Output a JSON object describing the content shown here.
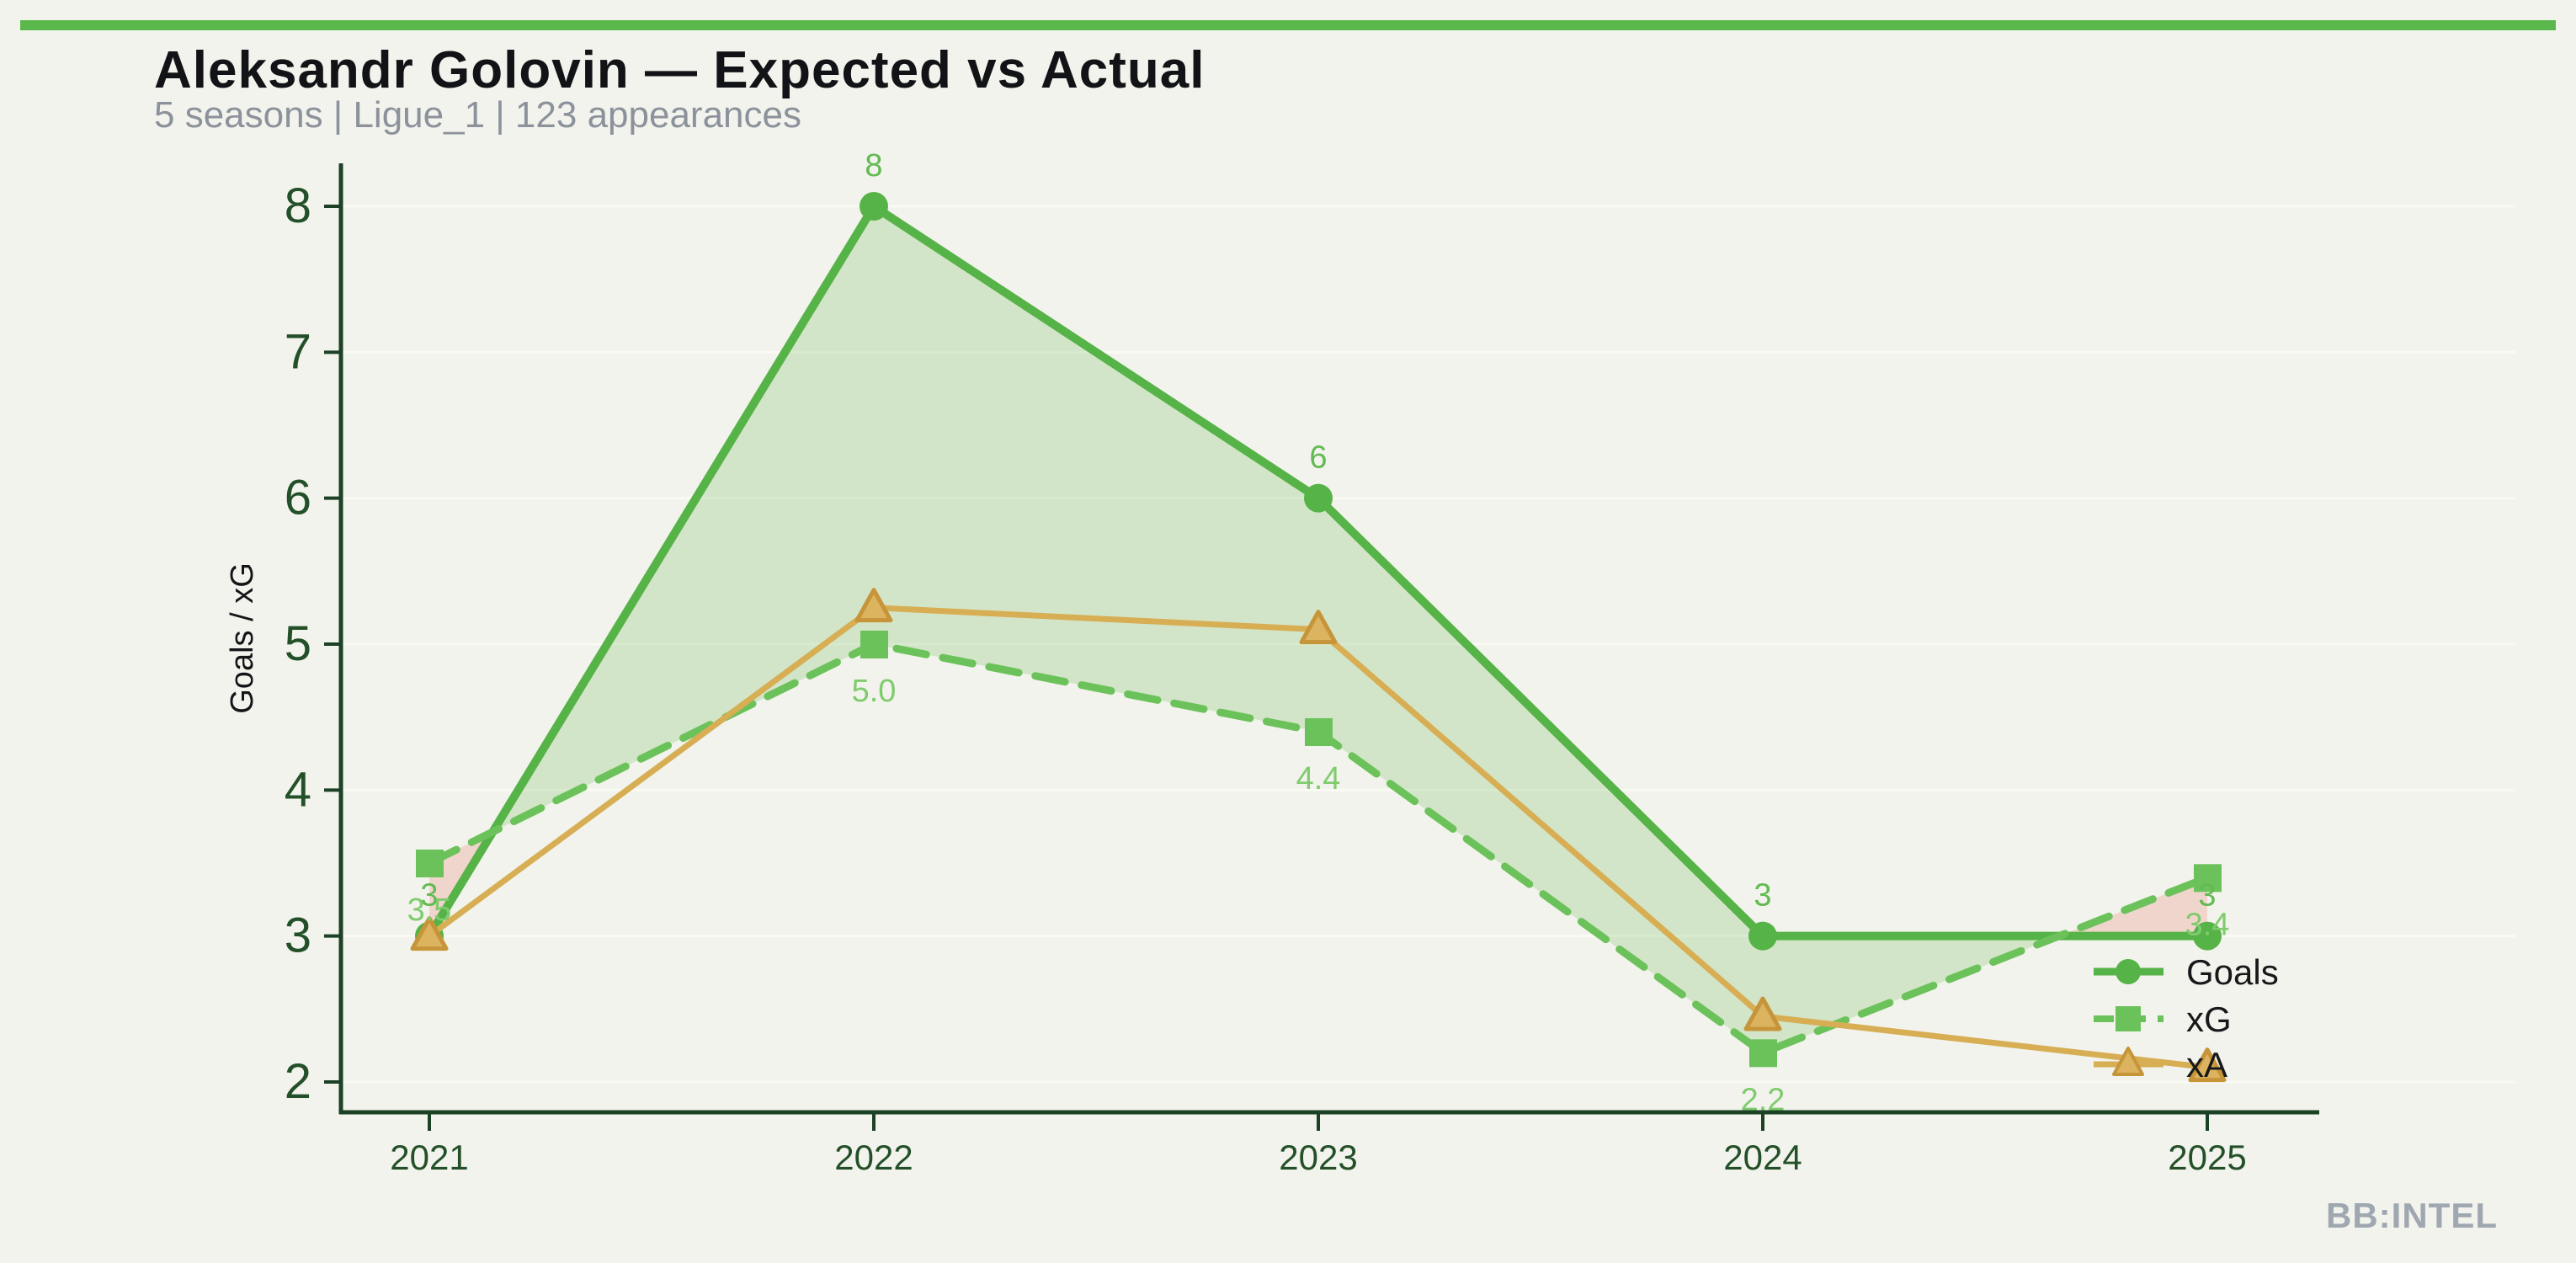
{
  "header": {
    "title": "Aleksandr Golovin — Expected vs Actual",
    "subtitle": "5 seasons | Ligue_1 | 123 appearances"
  },
  "footer": {
    "brand": "BB:INTEL"
  },
  "theme": {
    "background": "#f2f3ec",
    "accent_bar": "#5bb84d",
    "spine_color": "#1d4125",
    "tick_label_color": "#245029",
    "grid_color": "#fbfbf6",
    "axis_title_color": "#141518",
    "title_color": "#121316",
    "subtitle_color": "#8c929c",
    "legend_text_color": "#17181a",
    "brand_color": "#9fa7b1"
  },
  "chart_data": {
    "type": "line",
    "title": "Aleksandr Golovin — Expected vs Actual",
    "xlabel": "",
    "ylabel": "Goals / xG",
    "x": [
      2021,
      2022,
      2023,
      2024,
      2025
    ],
    "x_tick_labels": [
      "2021",
      "2022",
      "2023",
      "2024",
      "2025"
    ],
    "y_ticks": [
      2,
      3,
      4,
      5,
      6,
      7,
      8
    ],
    "ylim": [
      1.85,
      8.3
    ],
    "grid": "horizontal-white",
    "legend_position": "lower right",
    "series": [
      {
        "name": "Goals",
        "values": [
          3,
          8,
          6,
          3,
          3
        ],
        "point_labels": [
          "3",
          "8",
          "6",
          "3",
          "3"
        ],
        "marker": "circle",
        "line_style": "solid",
        "color": "#56b347",
        "label_color": "#63ba52"
      },
      {
        "name": "xG",
        "values": [
          3.5,
          5.0,
          4.4,
          2.2,
          3.4
        ],
        "point_labels": [
          "3.5",
          "5.0",
          "4.4",
          "2.2",
          "3.4"
        ],
        "marker": "square",
        "line_style": "dashed",
        "color": "#6cc25a",
        "label_color": "#80cb6e"
      },
      {
        "name": "xA",
        "values": [
          3.0,
          5.25,
          5.1,
          2.45,
          2.1
        ],
        "point_labels": [],
        "marker": "triangle",
        "line_style": "solid",
        "color": "#d7ae54",
        "marker_fill": "#dcb35f",
        "marker_stroke": "#c69539"
      }
    ],
    "fill_between": {
      "series_a": "Goals",
      "series_b": "xG",
      "positive_color": "rgba(140,200,115,0.30)",
      "negative_color": "rgba(236,148,136,0.32)"
    }
  }
}
